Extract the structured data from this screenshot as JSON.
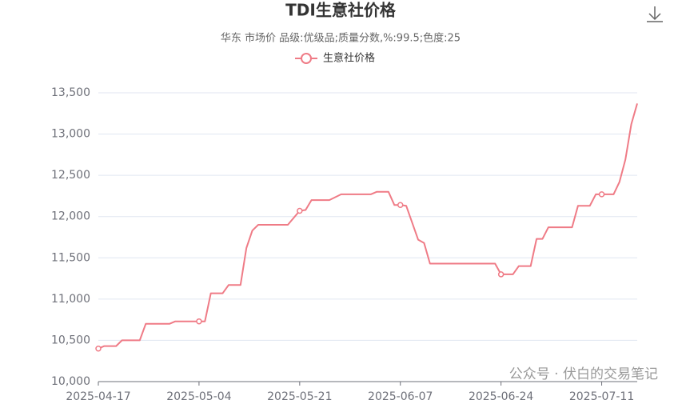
{
  "chart_data": {
    "type": "line",
    "title": "TDI生意社价格",
    "subtitle": "华东 市场价 品级:优级品;质量分数,%:99.5;色度:25",
    "watermark": "公众号 · 伏白的交易笔记",
    "x": [
      "2025-04-17",
      "2025-04-18",
      "2025-04-20",
      "2025-04-21",
      "2025-04-24",
      "2025-04-25",
      "2025-04-29",
      "2025-04-30",
      "2025-05-04",
      "2025-05-05",
      "2025-05-06",
      "2025-05-08",
      "2025-05-09",
      "2025-05-11",
      "2025-05-12",
      "2025-05-13",
      "2025-05-14",
      "2025-05-19",
      "2025-05-21",
      "2025-05-22",
      "2025-05-23",
      "2025-05-26",
      "2025-05-28",
      "2025-06-02",
      "2025-06-03",
      "2025-06-05",
      "2025-06-06",
      "2025-06-07",
      "2025-06-08",
      "2025-06-10",
      "2025-06-11",
      "2025-06-12",
      "2025-06-23",
      "2025-06-24",
      "2025-06-26",
      "2025-06-27",
      "2025-06-29",
      "2025-06-30",
      "2025-07-01",
      "2025-07-02",
      "2025-07-06",
      "2025-07-07",
      "2025-07-09",
      "2025-07-10",
      "2025-07-11",
      "2025-07-13",
      "2025-07-14",
      "2025-07-15",
      "2025-07-16",
      "2025-07-17"
    ],
    "series": [
      {
        "name": "生意社价格",
        "color": "#ef7b86",
        "values": [
          10400,
          10430,
          10430,
          10500,
          10500,
          10700,
          10700,
          10730,
          10730,
          10730,
          11070,
          11070,
          11170,
          11170,
          11620,
          11830,
          11900,
          11900,
          12070,
          12080,
          12200,
          12200,
          12270,
          12270,
          12300,
          12300,
          12140,
          12140,
          12130,
          11720,
          11680,
          11430,
          11430,
          11300,
          11300,
          11400,
          11400,
          11730,
          11730,
          11870,
          11870,
          12130,
          12130,
          12270,
          12270,
          12270,
          12420,
          12690,
          13120,
          13370
        ]
      }
    ],
    "xlim": [
      "2025-04-17",
      "2025-07-17"
    ],
    "xticks": [
      "2025-04-17",
      "2025-05-04",
      "2025-05-21",
      "2025-06-07",
      "2025-06-24",
      "2025-07-11"
    ],
    "ylim": [
      10000,
      13500
    ],
    "yticks": [
      {
        "value": 10000,
        "label": "10,000"
      },
      {
        "value": 10500,
        "label": "10,500"
      },
      {
        "value": 11000,
        "label": "11,000"
      },
      {
        "value": 11500,
        "label": "11,500"
      },
      {
        "value": 12000,
        "label": "12,000"
      },
      {
        "value": 12500,
        "label": "12,500"
      },
      {
        "value": 13000,
        "label": "13,000"
      },
      {
        "value": 13500,
        "label": "13,500"
      }
    ],
    "grid": true
  }
}
